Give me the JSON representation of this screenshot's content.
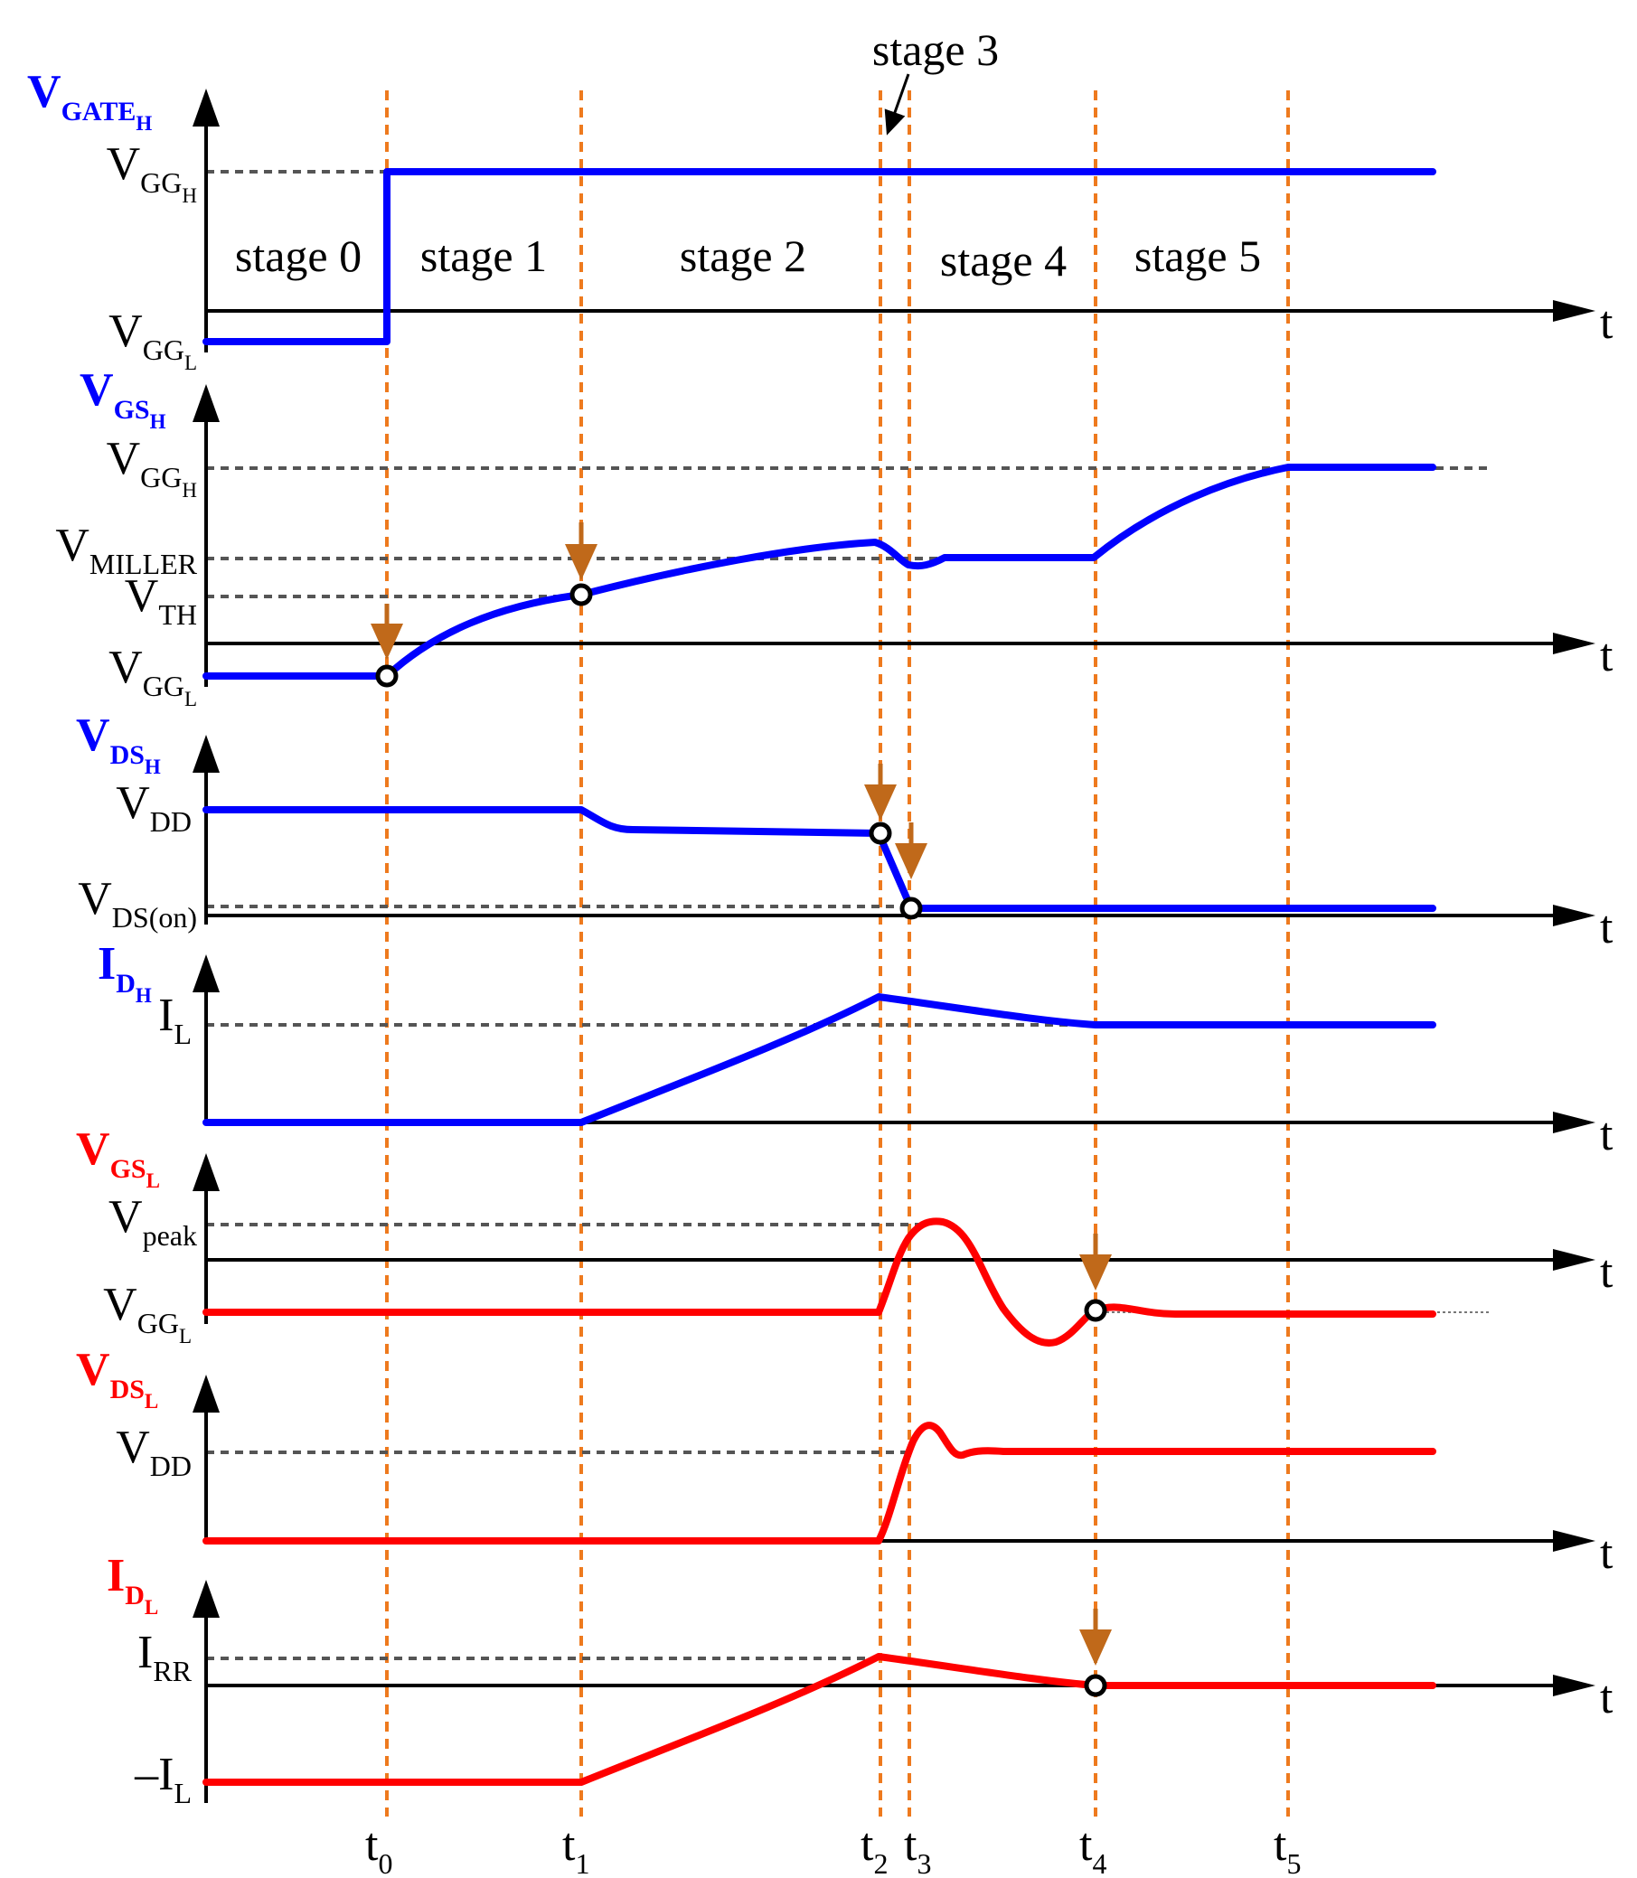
{
  "colors": {
    "high_side": "#0000ff",
    "low_side": "#ff0000",
    "axis": "#000000",
    "reference_dashed": "#555555",
    "time_marker": "#ee7a1e",
    "event_arrow": "#c0691a"
  },
  "time_labels": [
    {
      "base": "t",
      "sub": "0"
    },
    {
      "base": "t",
      "sub": "1"
    },
    {
      "base": "t",
      "sub": "2"
    },
    {
      "base": "t",
      "sub": "3"
    },
    {
      "base": "t",
      "sub": "4"
    },
    {
      "base": "t",
      "sub": "5"
    }
  ],
  "stages": [
    "stage 0",
    "stage 1",
    "stage 2",
    "stage 3",
    "stage 4",
    "stage 5"
  ],
  "axis_time_label": "t",
  "panels": [
    {
      "title": {
        "base": "V",
        "sub": "GATE",
        "subsub": "H"
      },
      "side": "high",
      "levels": [
        {
          "base": "V",
          "sub": "GG",
          "subsub": "H"
        },
        {
          "base": "V",
          "sub": "GG",
          "subsub": "L"
        }
      ]
    },
    {
      "title": {
        "base": "V",
        "sub": "GS",
        "subsub": "H"
      },
      "side": "high",
      "levels": [
        {
          "base": "V",
          "sub": "GG",
          "subsub": "H"
        },
        {
          "base": "V",
          "sub": "MILLER",
          "subsub": ""
        },
        {
          "base": "V",
          "sub": "TH",
          "subsub": ""
        },
        {
          "base": "V",
          "sub": "GG",
          "subsub": "L"
        }
      ]
    },
    {
      "title": {
        "base": "V",
        "sub": "DS",
        "subsub": "H"
      },
      "side": "high",
      "levels": [
        {
          "base": "V",
          "sub": "DD",
          "subsub": ""
        },
        {
          "base": "V",
          "sub": "DS(on)",
          "subsub": ""
        }
      ]
    },
    {
      "title": {
        "base": "I",
        "sub": "D",
        "subsub": "H"
      },
      "side": "high",
      "levels": [
        {
          "base": "I",
          "sub": "L",
          "subsub": ""
        }
      ]
    },
    {
      "title": {
        "base": "V",
        "sub": "GS",
        "subsub": "L"
      },
      "side": "low",
      "levels": [
        {
          "base": "V",
          "sub": "peak",
          "subsub": ""
        },
        {
          "base": "V",
          "sub": "GG",
          "subsub": "L"
        }
      ]
    },
    {
      "title": {
        "base": "V",
        "sub": "DS",
        "subsub": "L"
      },
      "side": "low",
      "levels": [
        {
          "base": "V",
          "sub": "DD",
          "subsub": ""
        }
      ]
    },
    {
      "title": {
        "base": "I",
        "sub": "D",
        "subsub": "L"
      },
      "side": "low",
      "levels": [
        {
          "base": "I",
          "sub": "RR",
          "subsub": ""
        },
        {
          "base": "–I",
          "sub": "L",
          "subsub": ""
        }
      ]
    }
  ]
}
